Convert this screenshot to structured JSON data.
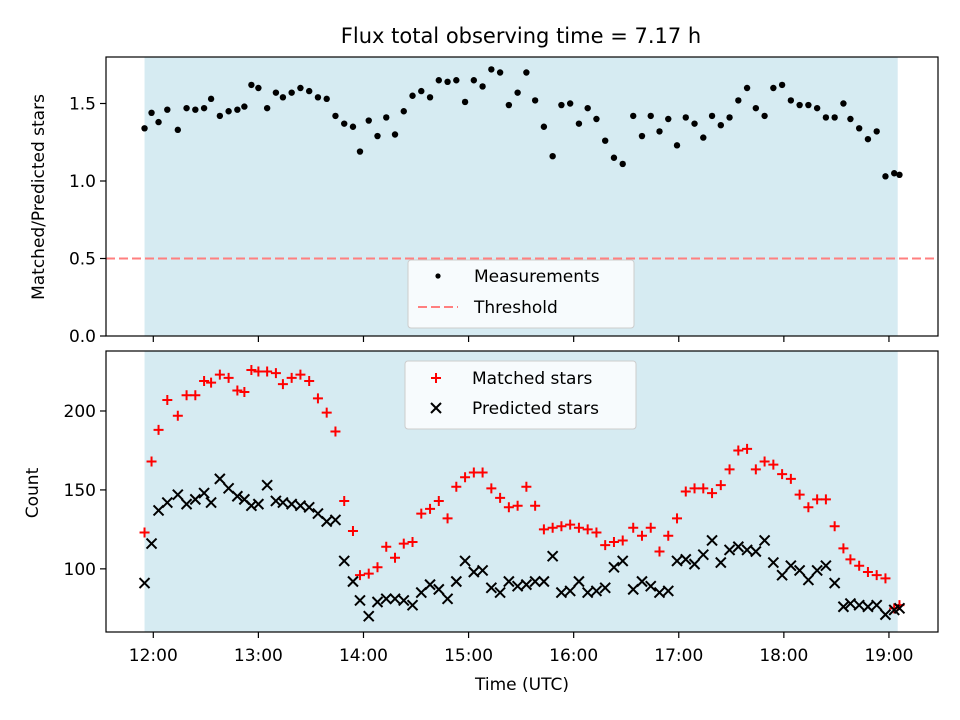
{
  "chart_data": [
    {
      "type": "scatter",
      "title": "Flux total observing time = 7.17 h",
      "xlabel": "",
      "ylabel": "Matched/Predicted stars",
      "xlim": [
        "11:33",
        "19:28"
      ],
      "ylim": [
        0,
        1.8
      ],
      "y_ticks": [
        "0.0",
        "0.5",
        "1.0",
        "1.5"
      ],
      "y_tick_values": [
        0,
        0.5,
        1.0,
        1.5
      ],
      "x_ticks": [
        "12:00",
        "13:00",
        "14:00",
        "15:00",
        "16:00",
        "17:00",
        "18:00",
        "19:00"
      ],
      "shaded_span": [
        "11:55",
        "19:05"
      ],
      "shade_color": "#add8e6",
      "threshold": 0.5,
      "threshold_color": "#ff7f7f",
      "legend": {
        "placement": "lower-center",
        "entries": [
          "Measurements",
          "Threshold"
        ]
      },
      "series": [
        {
          "name": "Measurements",
          "marker": "dot",
          "color": "#000000",
          "x": [
            "11:55",
            "11:59",
            "12:03",
            "12:08",
            "12:14",
            "12:19",
            "12:24",
            "12:29",
            "12:33",
            "12:38",
            "12:43",
            "12:48",
            "12:52",
            "12:56",
            "13:00",
            "13:05",
            "13:10",
            "13:14",
            "13:19",
            "13:24",
            "13:29",
            "13:34",
            "13:39",
            "13:44",
            "13:49",
            "13:54",
            "13:58",
            "14:03",
            "14:08",
            "14:13",
            "14:18",
            "14:23",
            "14:28",
            "14:33",
            "14:38",
            "14:43",
            "14:48",
            "14:53",
            "14:58",
            "15:03",
            "15:08",
            "15:13",
            "15:18",
            "15:23",
            "15:28",
            "15:33",
            "15:38",
            "15:43",
            "15:48",
            "15:53",
            "15:58",
            "16:03",
            "16:08",
            "16:13",
            "16:18",
            "16:23",
            "16:28",
            "16:34",
            "16:39",
            "16:44",
            "16:49",
            "16:54",
            "16:59",
            "17:04",
            "17:09",
            "17:14",
            "17:19",
            "17:24",
            "17:29",
            "17:34",
            "17:39",
            "17:44",
            "17:49",
            "17:54",
            "17:59",
            "18:04",
            "18:09",
            "18:14",
            "18:19",
            "18:24",
            "18:29",
            "18:34",
            "18:38",
            "18:43",
            "18:48",
            "18:53",
            "18:58",
            "19:03",
            "19:06"
          ],
          "y": [
            1.34,
            1.44,
            1.38,
            1.46,
            1.33,
            1.47,
            1.46,
            1.47,
            1.53,
            1.42,
            1.45,
            1.46,
            1.48,
            1.62,
            1.6,
            1.47,
            1.57,
            1.54,
            1.57,
            1.6,
            1.58,
            1.54,
            1.53,
            1.42,
            1.37,
            1.35,
            1.19,
            1.39,
            1.29,
            1.41,
            1.3,
            1.45,
            1.55,
            1.58,
            1.54,
            1.65,
            1.64,
            1.65,
            1.51,
            1.65,
            1.61,
            1.72,
            1.7,
            1.49,
            1.57,
            1.7,
            1.52,
            1.35,
            1.16,
            1.49,
            1.5,
            1.37,
            1.47,
            1.4,
            1.26,
            1.15,
            1.11,
            1.42,
            1.29,
            1.42,
            1.32,
            1.4,
            1.23,
            1.41,
            1.37,
            1.28,
            1.42,
            1.36,
            1.41,
            1.52,
            1.6,
            1.47,
            1.42,
            1.6,
            1.62,
            1.52,
            1.49,
            1.49,
            1.47,
            1.41,
            1.41,
            1.5,
            1.4,
            1.34,
            1.27,
            1.32,
            1.03,
            1.05,
            1.04
          ]
        }
      ]
    },
    {
      "type": "scatter",
      "title": "",
      "xlabel": "Time (UTC)",
      "ylabel": "Count",
      "xlim": [
        "11:33",
        "19:28"
      ],
      "ylim": [
        60,
        238
      ],
      "y_ticks": [
        "100",
        "150",
        "200"
      ],
      "y_tick_values": [
        100,
        150,
        200
      ],
      "x_ticks": [
        "12:00",
        "13:00",
        "14:00",
        "15:00",
        "16:00",
        "17:00",
        "18:00",
        "19:00"
      ],
      "shaded_span": [
        "11:55",
        "19:05"
      ],
      "shade_color": "#add8e6",
      "legend": {
        "placement": "top-center",
        "entries": [
          "Matched stars",
          "Predicted stars"
        ]
      },
      "series": [
        {
          "name": "Matched stars",
          "marker": "plus",
          "color": "#ff0000",
          "x": [
            "11:55",
            "11:59",
            "12:03",
            "12:08",
            "12:14",
            "12:19",
            "12:24",
            "12:29",
            "12:33",
            "12:38",
            "12:43",
            "12:48",
            "12:52",
            "12:56",
            "13:00",
            "13:05",
            "13:10",
            "13:14",
            "13:19",
            "13:24",
            "13:29",
            "13:34",
            "13:39",
            "13:44",
            "13:49",
            "13:54",
            "13:58",
            "14:03",
            "14:08",
            "14:13",
            "14:18",
            "14:23",
            "14:28",
            "14:33",
            "14:38",
            "14:43",
            "14:48",
            "14:53",
            "14:58",
            "15:03",
            "15:08",
            "15:13",
            "15:18",
            "15:23",
            "15:28",
            "15:33",
            "15:38",
            "15:43",
            "15:48",
            "15:53",
            "15:58",
            "16:03",
            "16:08",
            "16:13",
            "16:18",
            "16:23",
            "16:28",
            "16:34",
            "16:39",
            "16:44",
            "16:49",
            "16:54",
            "16:59",
            "17:04",
            "17:09",
            "17:14",
            "17:19",
            "17:24",
            "17:29",
            "17:34",
            "17:39",
            "17:44",
            "17:49",
            "17:54",
            "17:59",
            "18:04",
            "18:09",
            "18:14",
            "18:19",
            "18:24",
            "18:29",
            "18:34",
            "18:38",
            "18:43",
            "18:48",
            "18:53",
            "18:58",
            "19:03",
            "19:06"
          ],
          "y": [
            123,
            168,
            188,
            207,
            197,
            210,
            210,
            219,
            218,
            223,
            221,
            213,
            212,
            226,
            225,
            225,
            224,
            217,
            221,
            223,
            219,
            208,
            199,
            187,
            143,
            124,
            96,
            97,
            101,
            114,
            107,
            116,
            117,
            135,
            138,
            143,
            132,
            152,
            158,
            161,
            161,
            151,
            145,
            139,
            140,
            152,
            140,
            125,
            126,
            127,
            128,
            126,
            125,
            123,
            115,
            117,
            118,
            126,
            121,
            126,
            111,
            121,
            132,
            149,
            151,
            151,
            148,
            153,
            163,
            175,
            176,
            163,
            168,
            166,
            160,
            157,
            147,
            139,
            144,
            144,
            127,
            113,
            106,
            102,
            98,
            96,
            94,
            75,
            77
          ]
        },
        {
          "name": "Predicted stars",
          "marker": "cross",
          "color": "#000000",
          "x": [
            "11:55",
            "11:59",
            "12:03",
            "12:08",
            "12:14",
            "12:19",
            "12:24",
            "12:29",
            "12:33",
            "12:38",
            "12:43",
            "12:48",
            "12:52",
            "12:56",
            "13:00",
            "13:05",
            "13:10",
            "13:14",
            "13:19",
            "13:24",
            "13:29",
            "13:34",
            "13:39",
            "13:44",
            "13:49",
            "13:54",
            "13:58",
            "14:03",
            "14:08",
            "14:13",
            "14:18",
            "14:23",
            "14:28",
            "14:33",
            "14:38",
            "14:43",
            "14:48",
            "14:53",
            "14:58",
            "15:03",
            "15:08",
            "15:13",
            "15:18",
            "15:23",
            "15:28",
            "15:33",
            "15:38",
            "15:43",
            "15:48",
            "15:53",
            "15:58",
            "16:03",
            "16:08",
            "16:13",
            "16:18",
            "16:23",
            "16:28",
            "16:34",
            "16:39",
            "16:44",
            "16:49",
            "16:54",
            "16:59",
            "17:04",
            "17:09",
            "17:14",
            "17:19",
            "17:24",
            "17:29",
            "17:34",
            "17:39",
            "17:44",
            "17:49",
            "17:54",
            "17:59",
            "18:04",
            "18:09",
            "18:14",
            "18:19",
            "18:24",
            "18:29",
            "18:34",
            "18:38",
            "18:43",
            "18:48",
            "18:53",
            "18:58",
            "19:03",
            "19:06"
          ],
          "y": [
            91,
            116,
            137,
            142,
            147,
            141,
            144,
            148,
            142,
            157,
            151,
            146,
            144,
            140,
            141,
            153,
            143,
            142,
            141,
            140,
            139,
            135,
            130,
            131,
            105,
            92,
            80,
            70,
            79,
            81,
            81,
            80,
            77,
            85,
            90,
            87,
            81,
            92,
            105,
            98,
            99,
            88,
            85,
            92,
            89,
            90,
            92,
            92,
            108,
            85,
            86,
            92,
            85,
            86,
            88,
            101,
            105,
            87,
            92,
            89,
            85,
            86,
            105,
            106,
            103,
            109,
            118,
            104,
            112,
            114,
            112,
            111,
            118,
            104,
            96,
            102,
            99,
            93,
            99,
            102,
            91,
            76,
            78,
            77,
            76,
            77,
            71,
            74,
            75
          ]
        }
      ]
    }
  ]
}
